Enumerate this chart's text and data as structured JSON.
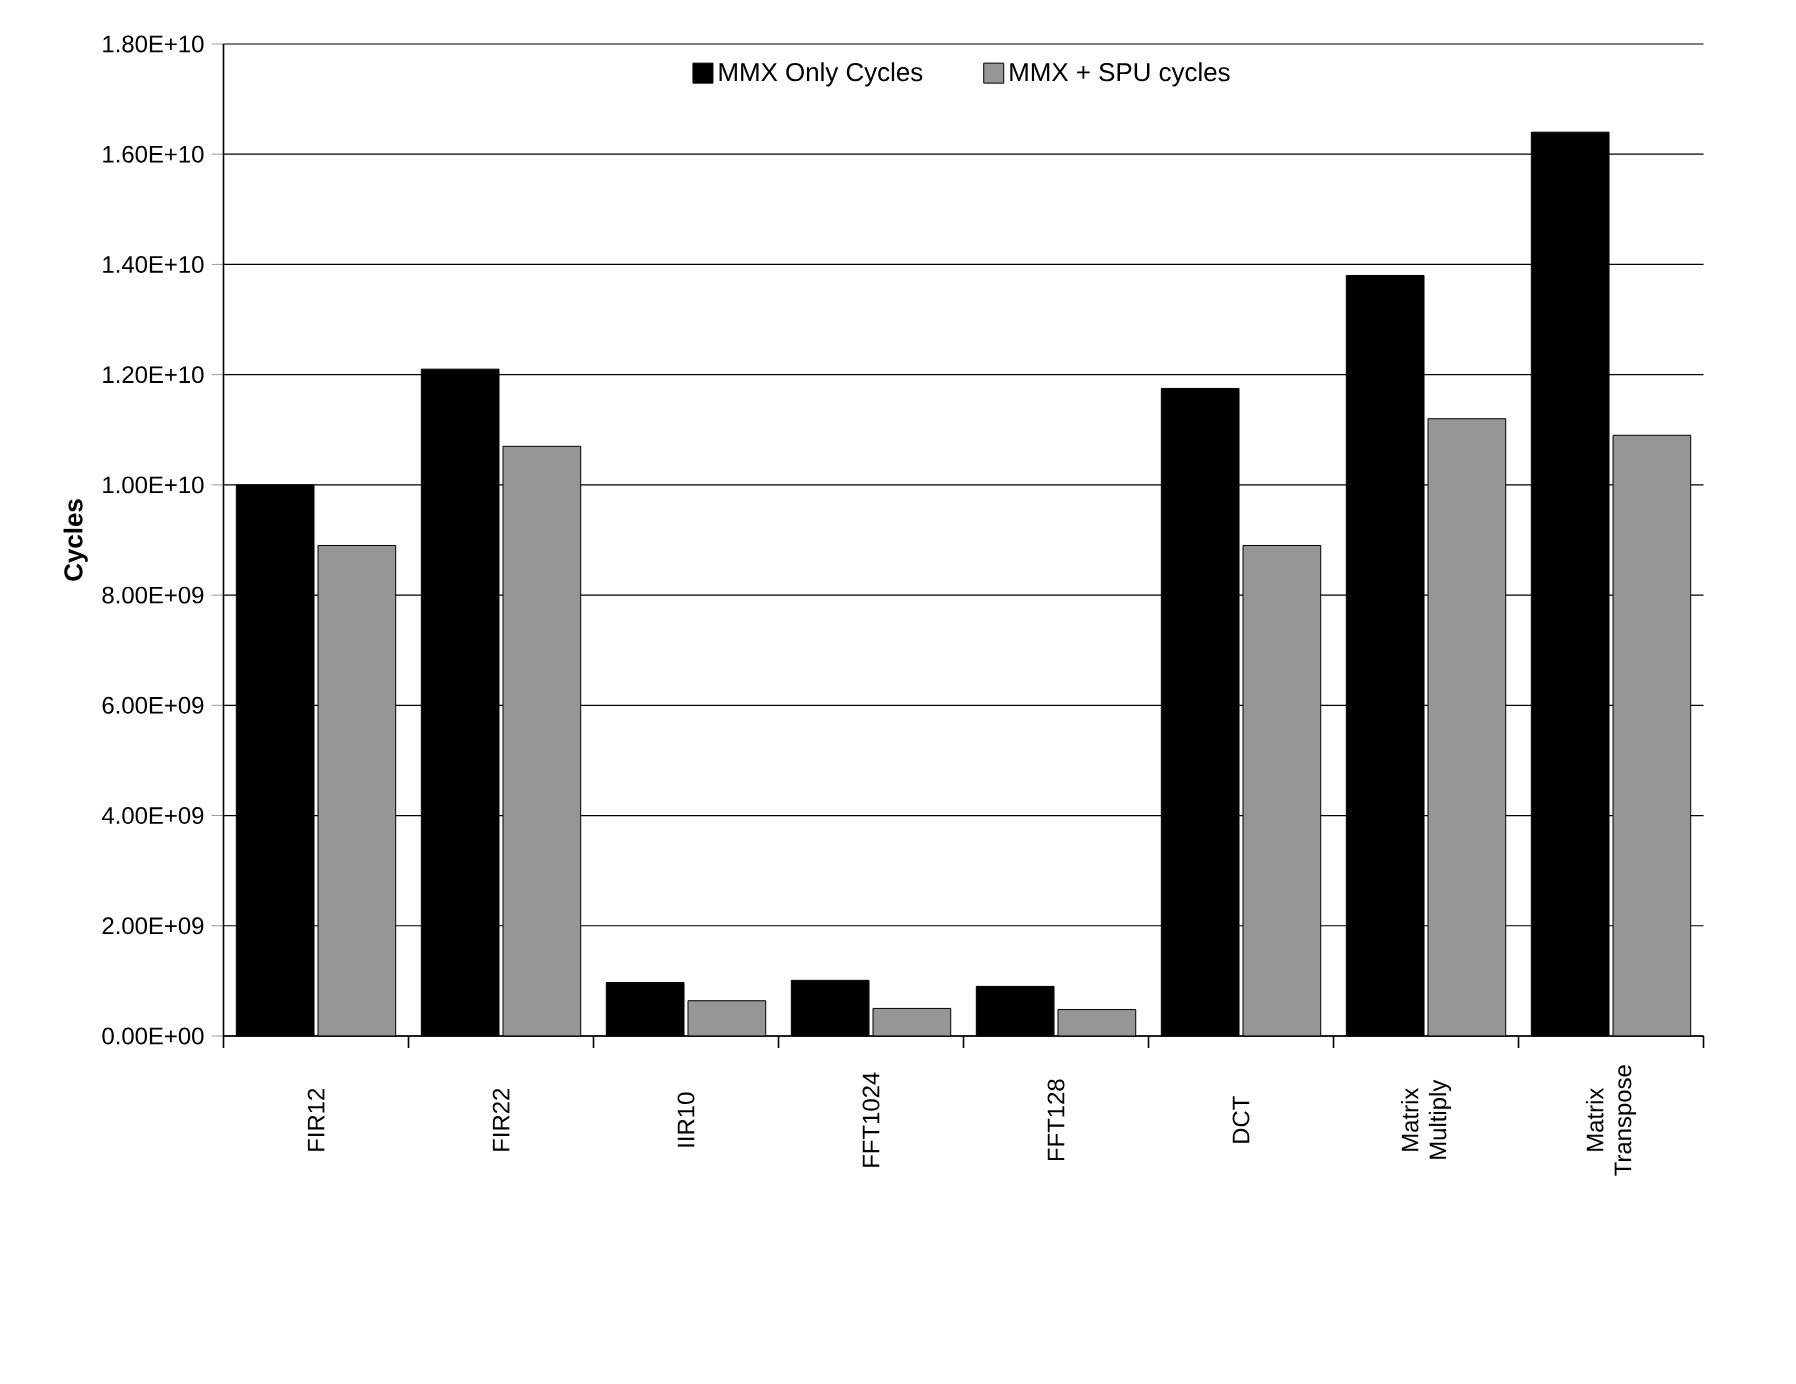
{
  "chart_data": {
    "type": "bar",
    "ylabel": "Cycles",
    "categories": [
      "FIR12",
      "FIR22",
      "IIR10",
      "FFT1024",
      "FFT128",
      "DCT",
      "Matrix Multiply",
      "Matrix Transpose"
    ],
    "series": [
      {
        "name": "MMX Only Cycles",
        "color": "#000000",
        "values": [
          10000000000.0,
          12100000000.0,
          970000000.0,
          1010000000.0,
          900000000.0,
          11750000000.0,
          13800000000.0,
          16400000000.0
        ]
      },
      {
        "name": "MMX + SPU cycles",
        "color": "#969696",
        "values": [
          8900000000.0,
          10700000000.0,
          640000000.0,
          500000000.0,
          480000000.0,
          8900000000.0,
          11200000000.0,
          10900000000.0
        ]
      }
    ],
    "ylim": [
      0,
      18000000000.0
    ],
    "yticks": [
      {
        "value": 0,
        "label": "0.00E+00"
      },
      {
        "value": 2000000000.0,
        "label": "2.00E+09"
      },
      {
        "value": 4000000000.0,
        "label": "4.00E+09"
      },
      {
        "value": 6000000000.0,
        "label": "6.00E+09"
      },
      {
        "value": 8000000000.0,
        "label": "8.00E+09"
      },
      {
        "value": 10000000000.0,
        "label": "1.00E+10"
      },
      {
        "value": 12000000000.0,
        "label": "1.20E+10"
      },
      {
        "value": 14000000000.0,
        "label": "1.40E+10"
      },
      {
        "value": 16000000000.0,
        "label": "1.60E+10"
      },
      {
        "value": 18000000000.0,
        "label": "1.80E+10"
      }
    ],
    "grid": "y",
    "legend": "top"
  }
}
